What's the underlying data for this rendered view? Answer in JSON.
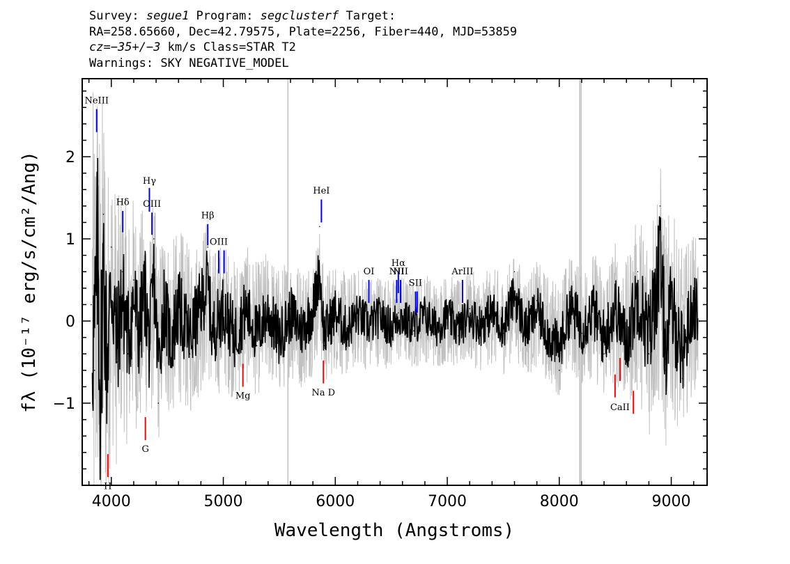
{
  "header": {
    "line1": {
      "survey_label": "Survey: ",
      "survey": "segue1",
      "program_label": " Program: ",
      "program": "segclusterf",
      "target_label": " Target:"
    },
    "line2": "RA=258.65660, Dec=42.79575, Plate=2256, Fiber=440, MJD=53859",
    "line3": {
      "cz_label": "cz",
      "cz_value": "=−35+/−3",
      "cz_unit": " km/s Class=STAR T2"
    },
    "line4": "Warnings: SKY NEGATIVE_MODEL"
  },
  "colors": {
    "flux": "#000000",
    "error": "#c0c0c0",
    "emission": "#0000ff",
    "absorption": "#ff0000",
    "sky": "#c0c0c0"
  },
  "chart_data": {
    "type": "line",
    "xlabel": "Wavelength (Angstroms)",
    "ylabel": "fλ (10⁻¹⁷ erg/s/cm²/Ang)",
    "xlim": [
      3740,
      9320
    ],
    "ylim": [
      -2.0,
      2.95
    ],
    "x_ticks": [
      4000,
      5000,
      6000,
      7000,
      8000,
      9000
    ],
    "y_ticks": [
      -1,
      0,
      1,
      2
    ],
    "series": [
      {
        "role": "flux",
        "color": "#000000",
        "x": [
          3820,
          3850,
          3880,
          3900,
          3930,
          3960,
          4000,
          4050,
          4100,
          4150,
          4200,
          4250,
          4300,
          4340,
          4380,
          4420,
          4470,
          4530,
          4600,
          4700,
          4800,
          4861,
          4900,
          5000,
          5100,
          5200,
          5300,
          5400,
          5500,
          5600,
          5700,
          5800,
          5860,
          5900,
          6000,
          6100,
          6200,
          6300,
          6400,
          6500,
          6563,
          6600,
          6700,
          6800,
          6900,
          7000,
          7100,
          7200,
          7300,
          7400,
          7500,
          7600,
          7700,
          7800,
          7900,
          8000,
          8100,
          8200,
          8300,
          8400,
          8500,
          8600,
          8700,
          8800,
          8900,
          8950,
          9000,
          9100,
          9200,
          9250
        ],
        "y": [
          0.2,
          -0.6,
          1.7,
          -1.6,
          1.3,
          -0.9,
          0.9,
          -0.5,
          0.6,
          -0.4,
          0.5,
          -0.3,
          0.7,
          -0.6,
          1.0,
          -1.0,
          0.4,
          -0.5,
          0.3,
          -0.4,
          0.35,
          0.9,
          -0.3,
          0.3,
          -0.35,
          0.25,
          -0.3,
          0.2,
          -0.4,
          0.15,
          -0.2,
          0.25,
          1.15,
          -0.3,
          0.2,
          -0.2,
          0.15,
          -0.1,
          0.1,
          -0.15,
          0.1,
          0.05,
          -0.12,
          0.15,
          -0.15,
          0.12,
          -0.18,
          0.15,
          -0.1,
          0.2,
          -0.15,
          0.6,
          -0.2,
          0.25,
          -0.3,
          -0.6,
          0.3,
          -0.15,
          0.25,
          -0.4,
          0.35,
          -0.5,
          0.6,
          -0.4,
          1.4,
          -0.6,
          0.3,
          -0.7,
          0.4,
          0.0
        ]
      },
      {
        "role": "error",
        "color": "#c0c0c0",
        "x": [
          3820,
          3900,
          4000,
          4100,
          4300,
          4500,
          4800,
          5000,
          5400,
          5800,
          6200,
          6600,
          7000,
          7400,
          7800,
          8200,
          8600,
          8900,
          9100,
          9250
        ],
        "y": [
          2.9,
          2.9,
          1.8,
          1.5,
          1.3,
          1.1,
          1.0,
          0.9,
          0.8,
          0.75,
          0.6,
          0.55,
          0.55,
          0.6,
          0.65,
          0.75,
          0.9,
          1.5,
          1.1,
          0.9
        ]
      }
    ],
    "sky_lines": [
      5577,
      8183,
      8195
    ],
    "emission_lines": [
      {
        "label": "NeIII",
        "x": 3869,
        "y0": 2.3,
        "y1": 2.58,
        "label_y": 2.65
      },
      {
        "label": "Hδ",
        "x": 4102,
        "y0": 1.08,
        "y1": 1.34,
        "label_y": 1.41
      },
      {
        "label": "Hγ",
        "x": 4340,
        "y0": 1.33,
        "y1": 1.62,
        "label_y": 1.67
      },
      {
        "label": "OIII",
        "x": 4363,
        "y0": 1.05,
        "y1": 1.32,
        "label_y": 1.39
      },
      {
        "label": "Hβ",
        "x": 4861,
        "y0": 0.92,
        "y1": 1.18,
        "label_y": 1.25
      },
      {
        "label": "OIII",
        "x": 4959,
        "y0": 0.58,
        "y1": 0.86,
        "label_y": 0.93
      },
      {
        "label": "",
        "x": 5007,
        "y0": 0.58,
        "y1": 0.86,
        "label_y": 0.93
      },
      {
        "label": "HeI",
        "x": 5876,
        "y0": 1.2,
        "y1": 1.48,
        "label_y": 1.55
      },
      {
        "label": "OI",
        "x": 6300,
        "y0": 0.22,
        "y1": 0.5,
        "label_y": 0.57
      },
      {
        "label": "NII",
        "x": 6548,
        "y0": 0.22,
        "y1": 0.5,
        "label_y": 0.57
      },
      {
        "label": "Hα",
        "x": 6563,
        "y0": 0.34,
        "y1": 0.6,
        "label_y": 0.67
      },
      {
        "label": "NII",
        "x": 6583,
        "y0": 0.22,
        "y1": 0.5,
        "label_y": 0.57
      },
      {
        "label": "SII",
        "x": 6716,
        "y0": 0.1,
        "y1": 0.36,
        "label_y": 0.43
      },
      {
        "label": "",
        "x": 6731,
        "y0": 0.1,
        "y1": 0.36,
        "label_y": 0.43
      },
      {
        "label": "ArIII",
        "x": 7136,
        "y0": 0.22,
        "y1": 0.5,
        "label_y": 0.57
      }
    ],
    "absorption_lines": [
      {
        "label": "H",
        "x": 3969,
        "y0": -1.62,
        "y1": -1.9,
        "label_y": -1.96
      },
      {
        "label": "G",
        "x": 4304,
        "y0": -1.17,
        "y1": -1.45,
        "label_y": -1.51
      },
      {
        "label": "Mg",
        "x": 5175,
        "y0": -0.52,
        "y1": -0.8,
        "label_y": -0.86
      },
      {
        "label": "Na D",
        "x": 5894,
        "y0": -0.48,
        "y1": -0.76,
        "label_y": -0.82
      },
      {
        "label": "",
        "x": 8498,
        "y0": -0.65,
        "y1": -0.93,
        "label_y": -0.99
      },
      {
        "label": "CaII",
        "x": 8542,
        "y0": -0.45,
        "y1": -0.73,
        "label_y": -1.0
      },
      {
        "label": "",
        "x": 8662,
        "y0": -0.85,
        "y1": -1.13,
        "label_y": -1.19
      }
    ]
  }
}
